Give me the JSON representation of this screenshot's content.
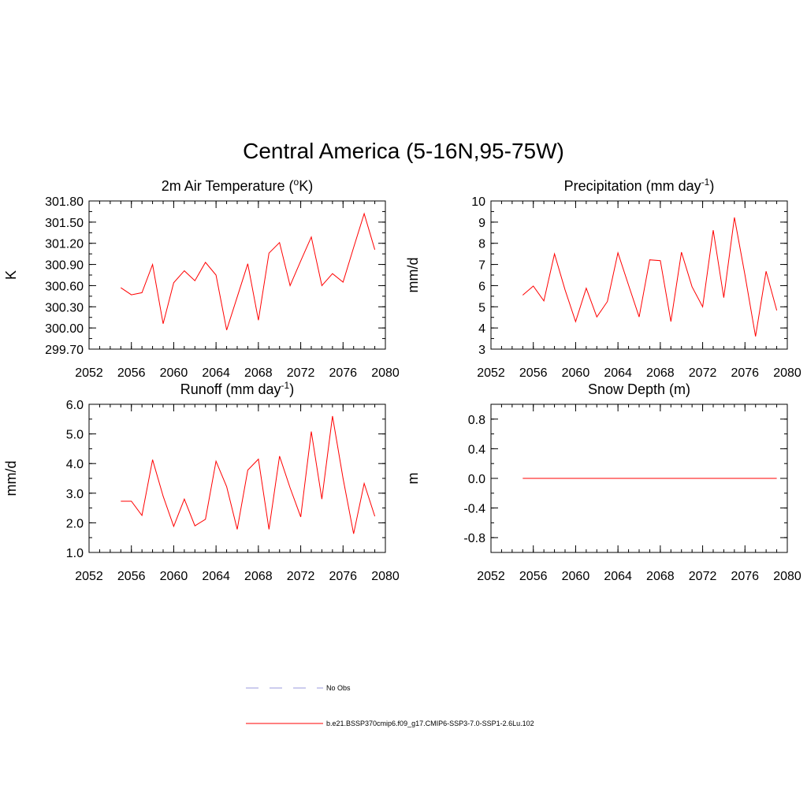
{
  "figure_title": "Central America (5-16N,95-75W)",
  "chart_data": [
    {
      "type": "line",
      "title": "2m Air Temperature (",
      "title_sup": "o",
      "title_after": "K)",
      "ylabel": "K",
      "xlim": [
        2052,
        2080
      ],
      "ylim": [
        299.7,
        301.8
      ],
      "xticks": [
        "2052",
        "2056",
        "2060",
        "2064",
        "2068",
        "2072",
        "2076",
        "2080"
      ],
      "yticks": [
        "299.70",
        "300.00",
        "300.30",
        "300.60",
        "300.90",
        "301.20",
        "301.50",
        "301.80"
      ],
      "series": [
        {
          "name": "b.e21.BSSP370cmip6.f09_g17.CMIP6-SSP3-7.0-SSP1-2.6Lu.102",
          "color": "#ff0000",
          "x": [
            2055,
            2056,
            2057,
            2058,
            2059,
            2060,
            2061,
            2062,
            2063,
            2064,
            2065,
            2066,
            2067,
            2068,
            2069,
            2070,
            2071,
            2072,
            2073,
            2074,
            2075,
            2076,
            2077,
            2078,
            2079
          ],
          "y": [
            300.57,
            300.47,
            300.5,
            300.9,
            300.06,
            300.64,
            300.81,
            300.67,
            300.93,
            300.75,
            299.97,
            300.44,
            300.91,
            300.11,
            301.06,
            301.21,
            300.6,
            300.95,
            301.29,
            300.6,
            300.77,
            300.65,
            301.14,
            301.62,
            301.11
          ]
        }
      ]
    },
    {
      "type": "line",
      "title": "Precipitation (mm day",
      "title_sup": "-1",
      "title_after": ")",
      "ylabel": "mm/d",
      "xlim": [
        2052,
        2080
      ],
      "ylim": [
        3,
        10
      ],
      "xticks": [
        "2052",
        "2056",
        "2060",
        "2064",
        "2068",
        "2072",
        "2076",
        "2080"
      ],
      "yticks": [
        "3",
        "4",
        "5",
        "6",
        "7",
        "8",
        "9",
        "10"
      ],
      "series": [
        {
          "name": "b.e21.BSSP370cmip6.f09_g17.CMIP6-SSP3-7.0-SSP1-2.6Lu.102",
          "color": "#ff0000",
          "x": [
            2055,
            2056,
            2057,
            2058,
            2059,
            2060,
            2061,
            2062,
            2063,
            2064,
            2065,
            2066,
            2067,
            2068,
            2069,
            2070,
            2071,
            2072,
            2073,
            2074,
            2075,
            2076,
            2077,
            2078,
            2079
          ],
          "y": [
            5.55,
            5.98,
            5.28,
            7.5,
            5.8,
            4.3,
            5.88,
            4.52,
            5.25,
            7.55,
            6.02,
            4.52,
            7.22,
            7.18,
            4.3,
            7.58,
            5.95,
            5.0,
            8.62,
            5.43,
            9.22,
            6.5,
            3.6,
            6.68,
            4.83
          ]
        }
      ]
    },
    {
      "type": "line",
      "title": "Runoff (mm day",
      "title_sup": "-1",
      "title_after": ")",
      "ylabel": "mm/d",
      "xlim": [
        2052,
        2080
      ],
      "ylim": [
        1.0,
        6.0
      ],
      "xticks": [
        "2052",
        "2056",
        "2060",
        "2064",
        "2068",
        "2072",
        "2076",
        "2080"
      ],
      "yticks": [
        "1.0",
        "2.0",
        "3.0",
        "4.0",
        "5.0",
        "6.0"
      ],
      "series": [
        {
          "name": "b.e21.BSSP370cmip6.f09_g17.CMIP6-SSP3-7.0-SSP1-2.6Lu.102",
          "color": "#ff0000",
          "x": [
            2055,
            2056,
            2057,
            2058,
            2059,
            2060,
            2061,
            2062,
            2063,
            2064,
            2065,
            2066,
            2067,
            2068,
            2069,
            2070,
            2071,
            2072,
            2073,
            2074,
            2075,
            2076,
            2077,
            2078,
            2079
          ],
          "y": [
            2.73,
            2.73,
            2.25,
            4.13,
            2.9,
            1.88,
            2.8,
            1.9,
            2.12,
            4.08,
            3.22,
            1.78,
            3.78,
            4.15,
            1.78,
            4.25,
            3.18,
            2.2,
            5.08,
            2.8,
            5.6,
            3.5,
            1.63,
            3.33,
            2.22
          ]
        }
      ]
    },
    {
      "type": "line",
      "title": "Snow Depth (m)",
      "title_sup": "",
      "title_after": "",
      "ylabel": "m",
      "xlim": [
        2052,
        2080
      ],
      "ylim": [
        -1.0,
        1.0
      ],
      "xticks": [
        "2052",
        "2056",
        "2060",
        "2064",
        "2068",
        "2072",
        "2076",
        "2080"
      ],
      "yticks": [
        "-0.8",
        "-0.4",
        "0.0",
        "0.4",
        "0.8"
      ],
      "series": [
        {
          "name": "b.e21.BSSP370cmip6.f09_g17.CMIP6-SSP3-7.0-SSP1-2.6Lu.102",
          "color": "#ff0000",
          "x": [
            2055,
            2056,
            2057,
            2058,
            2059,
            2060,
            2061,
            2062,
            2063,
            2064,
            2065,
            2066,
            2067,
            2068,
            2069,
            2070,
            2071,
            2072,
            2073,
            2074,
            2075,
            2076,
            2077,
            2078,
            2079
          ],
          "y": [
            0,
            0,
            0,
            0,
            0,
            0,
            0,
            0,
            0,
            0,
            0,
            0,
            0,
            0,
            0,
            0,
            0,
            0,
            0,
            0,
            0,
            0,
            0,
            0,
            0
          ]
        }
      ]
    }
  ],
  "legend": {
    "items": [
      {
        "label": "No Obs",
        "color": "#9999dd",
        "dashed": true
      },
      {
        "label": "b.e21.BSSP370cmip6.f09_g17.CMIP6-SSP3-7.0-SSP1-2.6Lu.102",
        "color": "#ff0000",
        "dashed": false
      }
    ]
  }
}
